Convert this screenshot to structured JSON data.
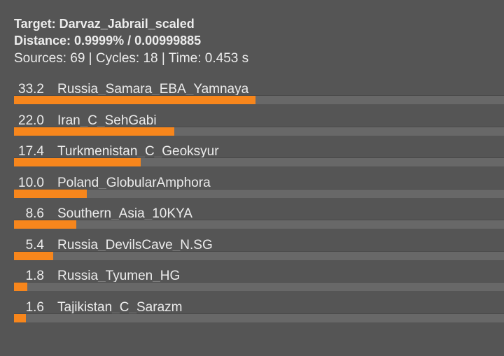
{
  "header": {
    "target": "Target: Darvaz_Jabrail_scaled",
    "distance": "Distance: 0.9999% / 0.00999885",
    "stats": "Sources: 69 | Cycles: 18 | Time: 0.453 s"
  },
  "colors": {
    "background": "#555555",
    "bar": "#f7861c",
    "track": "#686868"
  },
  "chart_data": {
    "type": "bar",
    "orientation": "horizontal",
    "xlim": [
      0,
      100
    ],
    "categories": [
      "Russia_Samara_EBA_Yamnaya",
      "Iran_C_SehGabi",
      "Turkmenistan_C_Geoksyur",
      "Poland_GlobularAmphora",
      "Southern_Asia_10KYA",
      "Russia_DevilsCave_N.SG",
      "Russia_Tyumen_HG",
      "Tajikistan_C_Sarazm"
    ],
    "values": [
      "33.2",
      "22.0",
      "17.4",
      "10.0",
      "8.6",
      "5.4",
      "1.8",
      "1.6"
    ]
  }
}
